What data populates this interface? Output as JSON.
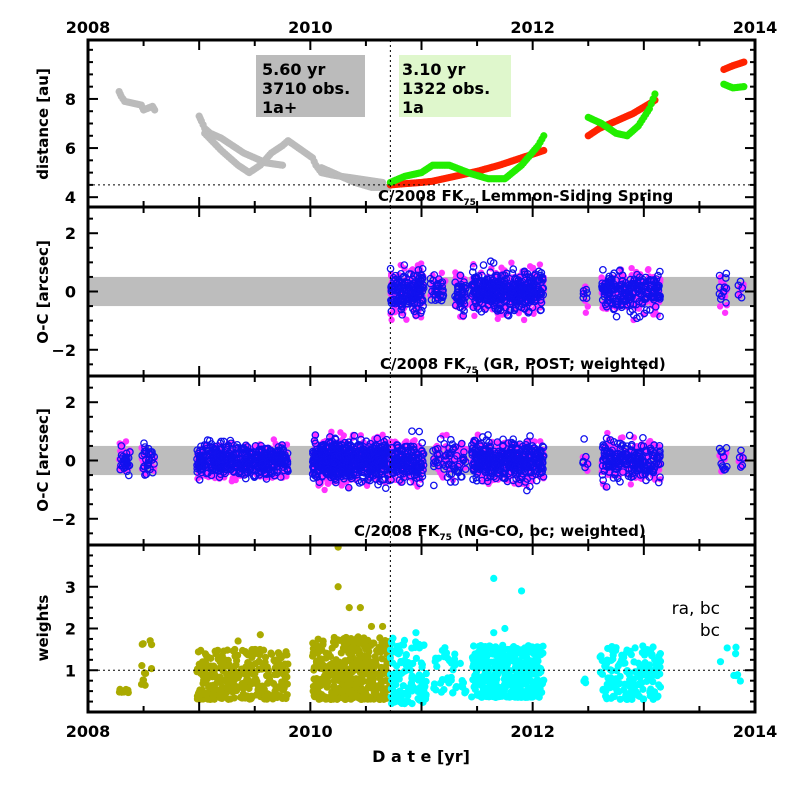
{
  "chart_data": [
    {
      "type": "scatter",
      "panel": "distance",
      "ylabel": "distance [au]",
      "ylim": [
        3.6,
        10.4
      ],
      "yticks": [
        4,
        6,
        8
      ],
      "xlim": [
        2008,
        2014
      ],
      "xticks": [
        "2008",
        "2010",
        "2012",
        "2014"
      ],
      "top_axis_labels": true,
      "reference_line_y": 4.5,
      "divider_x": 2010.72,
      "annotation": {
        "text": "C/2008 FK",
        "sub": "75",
        "rest": " Lemmon-Siding Spring"
      },
      "boxes": [
        {
          "lines": [
            "5.60 yr",
            "3710 obs.",
            "1a+"
          ],
          "color": "#bbbbbb"
        },
        {
          "lines": [
            "3.10 yr",
            "1322 obs.",
            "1a"
          ],
          "color": "#dff7cc"
        }
      ],
      "series": [
        {
          "color": "#bbbbbb",
          "points": [
            [
              2008.28,
              8.3
            ],
            [
              2008.3,
              8.1
            ],
            [
              2008.33,
              7.9
            ],
            [
              2008.48,
              7.75
            ],
            [
              2008.5,
              7.55
            ],
            [
              2008.58,
              7.7
            ],
            [
              2008.6,
              7.55
            ],
            [
              2009.0,
              7.3
            ],
            [
              2009.02,
              7.1
            ],
            [
              2009.05,
              6.8
            ],
            [
              2009.1,
              6.6
            ],
            [
              2009.2,
              6.4
            ],
            [
              2009.3,
              6.1
            ],
            [
              2009.4,
              5.8
            ],
            [
              2009.5,
              5.6
            ],
            [
              2009.6,
              5.4
            ],
            [
              2009.75,
              5.3
            ],
            [
              2009.05,
              6.6
            ],
            [
              2009.2,
              5.9
            ],
            [
              2009.35,
              5.3
            ],
            [
              2009.45,
              5.0
            ],
            [
              2009.55,
              5.3
            ],
            [
              2009.65,
              5.8
            ],
            [
              2009.75,
              6.1
            ],
            [
              2009.8,
              6.3
            ],
            [
              2010.02,
              5.6
            ],
            [
              2010.05,
              5.3
            ],
            [
              2010.1,
              5.0
            ],
            [
              2010.2,
              4.9
            ],
            [
              2010.35,
              4.8
            ],
            [
              2010.5,
              4.7
            ],
            [
              2010.65,
              4.6
            ],
            [
              2010.1,
              5.2
            ],
            [
              2010.25,
              4.9
            ],
            [
              2010.4,
              4.6
            ],
            [
              2010.55,
              4.4
            ],
            [
              2010.7,
              4.4
            ]
          ]
        },
        {
          "color": "#ff2200",
          "points": [
            [
              2010.72,
              4.5
            ],
            [
              2010.85,
              4.55
            ],
            [
              2011.0,
              4.6
            ],
            [
              2011.1,
              4.65
            ],
            [
              2011.3,
              4.85
            ],
            [
              2011.5,
              5.05
            ],
            [
              2011.7,
              5.3
            ],
            [
              2011.9,
              5.6
            ],
            [
              2012.1,
              5.9
            ],
            [
              2012.5,
              6.5
            ],
            [
              2012.6,
              6.8
            ],
            [
              2012.75,
              7.1
            ],
            [
              2012.9,
              7.4
            ],
            [
              2013.05,
              7.8
            ],
            [
              2013.1,
              7.95
            ],
            [
              2013.72,
              9.2
            ],
            [
              2013.8,
              9.35
            ],
            [
              2013.9,
              9.5
            ]
          ]
        },
        {
          "color": "#22ee00",
          "points": [
            [
              2010.72,
              4.6
            ],
            [
              2010.85,
              4.85
            ],
            [
              2011.0,
              5.0
            ],
            [
              2011.1,
              5.3
            ],
            [
              2011.25,
              5.3
            ],
            [
              2011.45,
              4.95
            ],
            [
              2011.6,
              4.75
            ],
            [
              2011.75,
              4.75
            ],
            [
              2011.9,
              5.3
            ],
            [
              2012.05,
              6.1
            ],
            [
              2012.1,
              6.5
            ],
            [
              2012.5,
              7.25
            ],
            [
              2012.62,
              7.0
            ],
            [
              2012.75,
              6.6
            ],
            [
              2012.85,
              6.5
            ],
            [
              2012.95,
              6.9
            ],
            [
              2013.05,
              7.6
            ],
            [
              2013.1,
              8.2
            ],
            [
              2013.72,
              8.6
            ],
            [
              2013.8,
              8.45
            ],
            [
              2013.9,
              8.5
            ]
          ]
        }
      ]
    },
    {
      "type": "scatter",
      "panel": "O-C GR POST",
      "ylabel": "O-C [arcsec]",
      "ylim": [
        -2.9,
        2.9
      ],
      "yticks": [
        -2,
        0,
        2
      ],
      "xlim": [
        2008,
        2014
      ],
      "band": [
        -0.5,
        0.5
      ],
      "annotation": {
        "text": "C/2008 FK",
        "sub": "75",
        "rest": " (GR, POST; weighted)"
      },
      "series_colors": {
        "filled": "#ff33ff",
        "open": "#1111ee"
      },
      "clusters": [
        [
          2010.72,
          2011.02,
          0.6,
          160
        ],
        [
          2011.08,
          2011.22,
          0.5,
          30
        ],
        [
          2011.3,
          2011.4,
          0.6,
          40
        ],
        [
          2011.45,
          2012.1,
          0.6,
          400
        ],
        [
          2012.45,
          2012.5,
          0.5,
          6
        ],
        [
          2012.62,
          2013.15,
          0.6,
          220
        ],
        [
          2013.68,
          2013.75,
          0.6,
          12
        ],
        [
          2013.85,
          2013.9,
          0.6,
          5
        ]
      ]
    },
    {
      "type": "scatter",
      "panel": "O-C NG-CO bc",
      "ylabel": "O-C [arcsec]",
      "ylim": [
        -2.9,
        2.9
      ],
      "yticks": [
        -2,
        0,
        2
      ],
      "xlim": [
        2008,
        2014
      ],
      "band": [
        -0.5,
        0.5
      ],
      "annotation": {
        "text": "C/2008 FK",
        "sub": "75",
        "rest": " (NG-CO, bc; weighted)"
      },
      "series_colors": {
        "filled": "#ff33ff",
        "open": "#1111ee"
      },
      "clusters": [
        [
          2008.28,
          2008.38,
          0.4,
          30
        ],
        [
          2008.48,
          2008.6,
          0.4,
          30
        ],
        [
          2008.98,
          2009.8,
          0.5,
          420
        ],
        [
          2010.02,
          2010.72,
          0.6,
          600
        ],
        [
          2010.72,
          2011.02,
          0.6,
          150
        ],
        [
          2011.1,
          2011.4,
          0.6,
          60
        ],
        [
          2011.45,
          2012.1,
          0.6,
          380
        ],
        [
          2012.45,
          2012.5,
          0.5,
          6
        ],
        [
          2012.62,
          2013.15,
          0.6,
          200
        ],
        [
          2013.68,
          2013.75,
          0.6,
          12
        ],
        [
          2013.85,
          2013.9,
          0.6,
          5
        ]
      ]
    },
    {
      "type": "scatter",
      "panel": "weights",
      "ylabel": "weights",
      "xlabel": "D a t e [yr]",
      "ylim": [
        0,
        4
      ],
      "yticks": [
        1,
        2,
        3
      ],
      "xlim": [
        2008,
        2014
      ],
      "xticks": [
        "2008",
        "2010",
        "2012",
        "2014"
      ],
      "reference_line_y": 1,
      "legend": [
        {
          "name": "ra, bc",
          "color": "#00ffff"
        },
        {
          "name": "bc",
          "color": "#aaaa00"
        }
      ],
      "clusters": [
        {
          "color": "#aaaa00",
          "c": [
            [
              2008.28,
              2008.38,
              0.45,
              0.55,
              10
            ],
            [
              2008.48,
              2008.58,
              0.6,
              1.8,
              12
            ],
            [
              2008.98,
              2009.8,
              0.3,
              1.5,
              300
            ],
            [
              2010.02,
              2010.72,
              0.3,
              1.8,
              400
            ]
          ]
        },
        {
          "color": "#00ffff",
          "c": [
            [
              2010.72,
              2011.05,
              0.2,
              1.8,
              120
            ],
            [
              2011.1,
              2011.4,
              0.45,
              1.6,
              40
            ],
            [
              2011.45,
              2012.1,
              0.35,
              1.6,
              380
            ],
            [
              2012.45,
              2012.5,
              0.7,
              0.8,
              3
            ],
            [
              2012.6,
              2013.15,
              0.3,
              1.6,
              160
            ],
            [
              2013.68,
              2013.9,
              0.7,
              1.6,
              8
            ]
          ]
        }
      ],
      "outliers": [
        {
          "color": "#aaaa00",
          "points": [
            [
              2010.25,
              3.95
            ],
            [
              2010.25,
              3.0
            ],
            [
              2010.35,
              2.5
            ],
            [
              2010.45,
              2.5
            ],
            [
              2010.55,
              2.05
            ],
            [
              2010.65,
              2.05
            ],
            [
              2009.55,
              1.85
            ],
            [
              2009.35,
              1.7
            ]
          ]
        },
        {
          "color": "#00ffff",
          "points": [
            [
              2011.65,
              3.2
            ],
            [
              2011.9,
              2.9
            ],
            [
              2011.75,
              2.0
            ],
            [
              2011.65,
              1.9
            ],
            [
              2010.95,
              1.9
            ],
            [
              2010.8,
              0.25
            ],
            [
              2010.88,
              0.25
            ]
          ]
        }
      ]
    }
  ]
}
